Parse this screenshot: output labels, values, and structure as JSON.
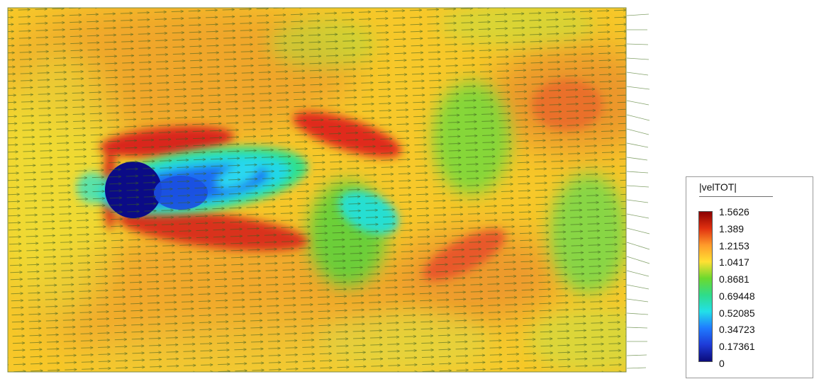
{
  "legend": {
    "title": "|velTOT|",
    "ticks": [
      "1.5626",
      "1.389",
      "1.2153",
      "1.0417",
      "0.8681",
      "0.69448",
      "0.52085",
      "0.34723",
      "0.17361",
      "0"
    ],
    "colors": [
      "#8b0000",
      "#e03010",
      "#ff9a2a",
      "#ffe033",
      "#6cd92e",
      "#2fdc8a",
      "#22e0e8",
      "#1f7bff",
      "#1e3bd8",
      "#0b0b7a"
    ]
  }
}
